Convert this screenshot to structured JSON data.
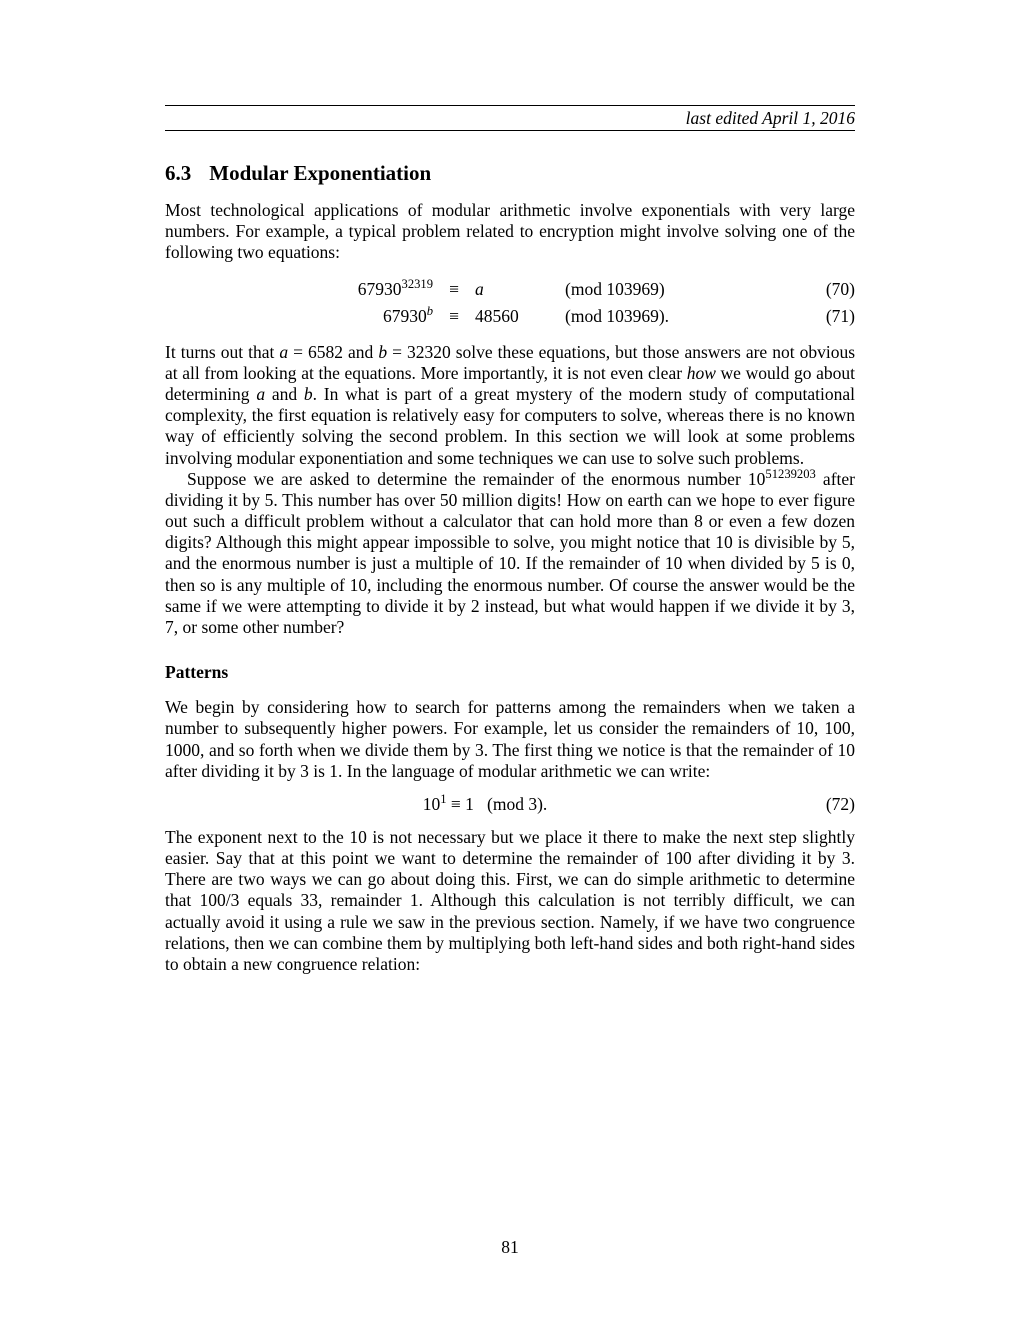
{
  "header": {
    "text": "last edited April 1, 2016"
  },
  "section": {
    "number": "6.3",
    "title": "Modular Exponentiation"
  },
  "para1": "Most technological applications of modular arithmetic involve exponentials with very large numbers. For example, a typical problem related to encryption might involve solving one of the following two equations:",
  "eqs": {
    "row1": {
      "base": "67930",
      "exp": "32319",
      "rel": "≡",
      "rhs": "a",
      "mod": "(mod 103969)",
      "num": "(70)"
    },
    "row2": {
      "base": "67930",
      "exp": "b",
      "rel": "≡",
      "rhs": "48560",
      "mod": "(mod 103969).",
      "num": "(71)"
    }
  },
  "para2_pre": "It turns out that ",
  "para2_a": "a",
  "para2_mid1": " = 6582 and ",
  "para2_b": "b",
  "para2_mid2": " = 32320 solve these equations, but those answers are not obvious at all from looking at the equations. More importantly, it is not even clear ",
  "para2_how": "how",
  "para2_mid3": " we would go about determining ",
  "para2_a2": "a",
  "para2_and": " and ",
  "para2_b2": "b",
  "para2_rest": ". In what is part of a great mystery of the modern study of computational complexity, the first equation is relatively easy for computers to solve, whereas there is no known way of efficiently solving the second problem. In this section we will look at some problems involving modular exponentiation and some techniques we can use to solve such problems.",
  "para3_pre": "Suppose we are asked to determine the remainder of the enormous number 10",
  "para3_exp": "51239203",
  "para3_rest": " after dividing it by 5. This number has over 50 million digits! How on earth can we hope to ever figure out such a difficult problem without a calculator that can hold more than 8 or even a few dozen digits? Although this might appear impossible to solve, you might notice that 10 is divisible by 5, and the enormous number is just a multiple of 10. If the remainder of 10 when divided by 5 is 0, then so is any multiple of 10, including the enormous number. Of course the answer would be the same if we were attempting to divide it by 2 instead, but what would happen if we divide it by 3, 7, or some other number?",
  "subhead": "Patterns",
  "para4": "We begin by considering how to search for patterns among the remainders when we taken a number to subsequently higher powers. For example, let us consider the remainders of 10, 100, 1000, and so forth when we divide them by 3. The first thing we notice is that the remainder of 10 after dividing it by 3 is 1. In the language of modular arithmetic we can write:",
  "eq72": {
    "lhs_base": "10",
    "lhs_exp": "1",
    "rel": " ≡ 1",
    "mod": "(mod 3).",
    "num": "(72)"
  },
  "para5": "The exponent next to the 10 is not necessary but we place it there to make the next step slightly easier. Say that at this point we want to determine the remainder of 100 after dividing it by 3. There are two ways we can go about doing this. First, we can do simple arithmetic to determine that 100/3 equals 33, remainder 1. Although this calculation is not terribly difficult, we can actually avoid it using a rule we saw in the previous section. Namely, if we have two congruence relations, then we can combine them by multiplying both left-hand sides and both right-hand sides to obtain a new congruence relation:",
  "pagenum": "81"
}
